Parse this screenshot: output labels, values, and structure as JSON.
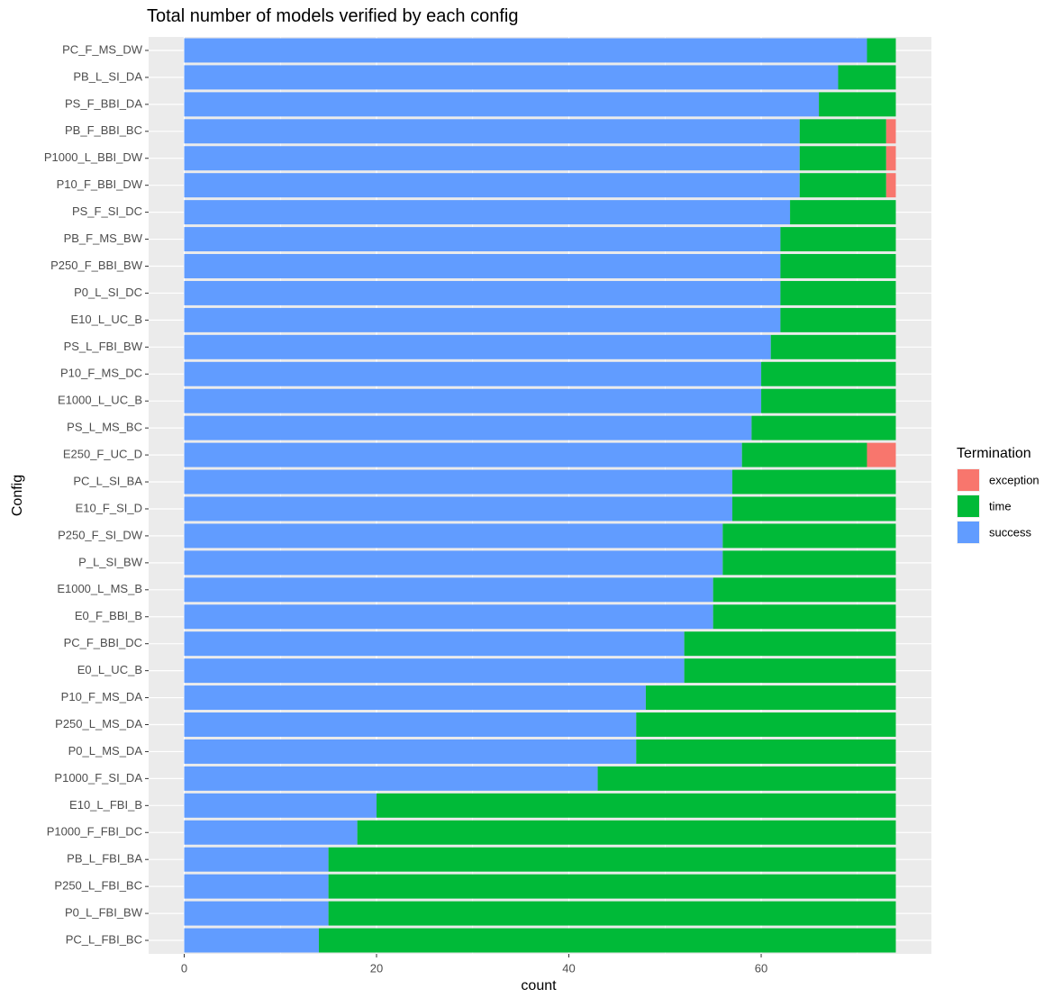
{
  "chart_data": {
    "type": "bar",
    "orientation": "horizontal",
    "stacked": true,
    "title": "Total number of models verified by each config",
    "x_label": "count",
    "y_label": "Config",
    "legend_title": "Termination",
    "categories": [
      "PC_F_MS_DW",
      "PB_L_SI_DA",
      "PS_F_BBI_DA",
      "PB_F_BBI_BC",
      "P1000_L_BBI_DW",
      "P10_F_BBI_DW",
      "PS_F_SI_DC",
      "PB_F_MS_BW",
      "P250_F_BBI_BW",
      "P0_L_SI_DC",
      "E10_L_UC_B",
      "PS_L_FBI_BW",
      "P10_F_MS_DC",
      "E1000_L_UC_B",
      "PS_L_MS_BC",
      "E250_F_UC_D",
      "PC_L_SI_BA",
      "E10_F_SI_D",
      "P250_F_SI_DW",
      "P_L_SI_BW",
      "E1000_L_MS_B",
      "E0_F_BBI_B",
      "PC_F_BBI_DC",
      "E0_L_UC_B",
      "P10_F_MS_DA",
      "P250_L_MS_DA",
      "P0_L_MS_DA",
      "P1000_F_SI_DA",
      "E10_L_FBI_B",
      "P1000_F_FBI_DC",
      "PB_L_FBI_BA",
      "P250_L_FBI_BC",
      "P0_L_FBI_BW",
      "PC_L_FBI_BC"
    ],
    "series": [
      {
        "name": "exception",
        "color": "#F8766D",
        "values": [
          0,
          0,
          0,
          1,
          1,
          1,
          0,
          0,
          0,
          0,
          0,
          0,
          0,
          0,
          0,
          3,
          0,
          0,
          0,
          0,
          0,
          0,
          0,
          0,
          0,
          0,
          0,
          0,
          0,
          0,
          0,
          0,
          0,
          0
        ]
      },
      {
        "name": "time",
        "color": "#00BA38",
        "values": [
          3,
          6,
          8,
          9,
          9,
          9,
          11,
          12,
          12,
          12,
          12,
          13,
          14,
          14,
          15,
          13,
          17,
          17,
          18,
          18,
          19,
          19,
          22,
          22,
          26,
          27,
          27,
          31,
          54,
          56,
          59,
          59,
          59,
          60
        ]
      },
      {
        "name": "success",
        "color": "#619CFF",
        "values": [
          71,
          68,
          66,
          64,
          64,
          64,
          63,
          62,
          62,
          62,
          62,
          61,
          60,
          60,
          59,
          58,
          57,
          57,
          56,
          56,
          55,
          55,
          52,
          52,
          48,
          47,
          47,
          43,
          20,
          18,
          15,
          15,
          15,
          14
        ]
      }
    ],
    "xlim": [
      -3.7,
      77.7
    ],
    "xticks": [
      0,
      20,
      40,
      60
    ],
    "grid": true,
    "legend": "right"
  }
}
